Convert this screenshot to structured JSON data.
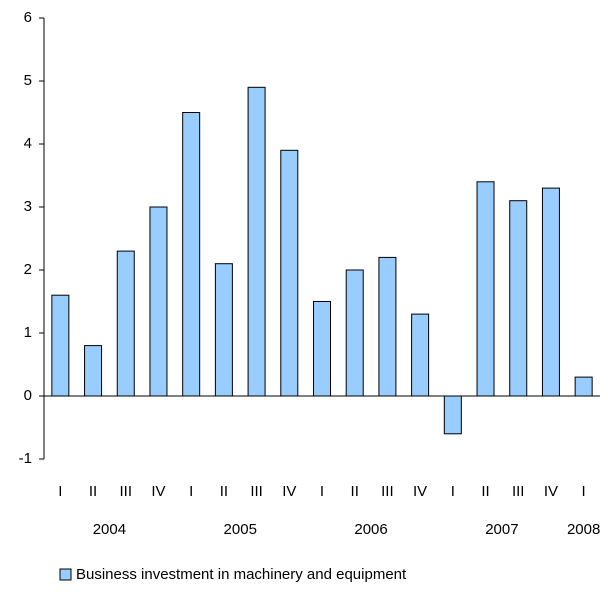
{
  "chart_data": {
    "type": "bar",
    "categories": [
      "I",
      "II",
      "III",
      "IV",
      "I",
      "II",
      "III",
      "IV",
      "I",
      "II",
      "III",
      "IV",
      "I",
      "II",
      "III",
      "IV",
      "I"
    ],
    "groups": [
      "2004",
      "2005",
      "2006",
      "2007",
      "2008"
    ],
    "series": [
      {
        "name": "Business investment in machinery and equipment",
        "color": "#99ccff",
        "values": [
          1.6,
          0.8,
          2.3,
          3.0,
          4.5,
          2.1,
          4.9,
          3.9,
          1.5,
          2.0,
          2.2,
          1.3,
          -0.6,
          3.4,
          3.1,
          3.3,
          0.3
        ]
      }
    ],
    "ylim": [
      -1,
      6
    ],
    "yticks": [
      -1,
      0,
      1,
      2,
      3,
      4,
      5,
      6
    ],
    "grid": false,
    "legend": "bottom"
  }
}
